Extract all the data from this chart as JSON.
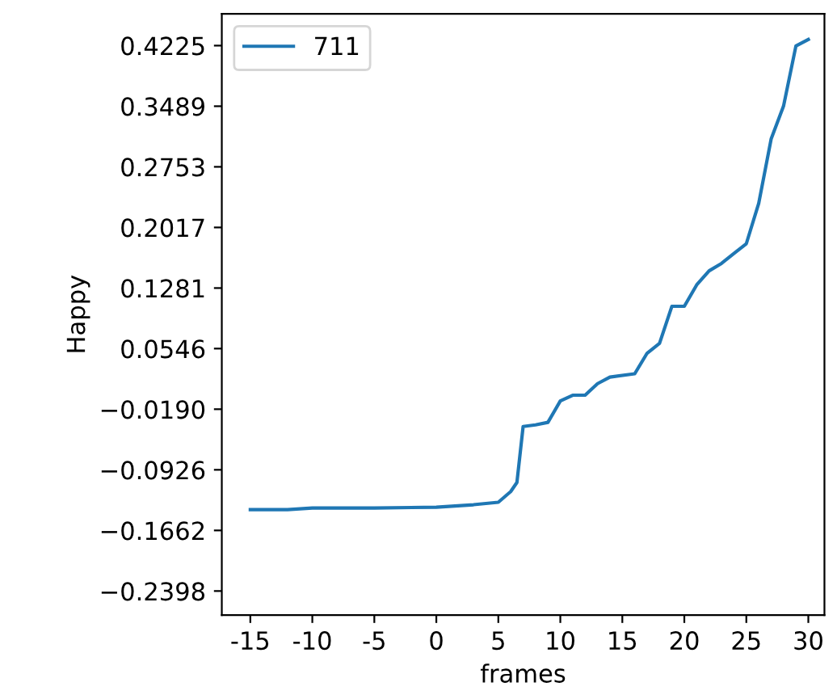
{
  "chart_data": {
    "type": "line",
    "xlabel": "frames",
    "ylabel": "Happy",
    "series": [
      {
        "name": "711",
        "color": "#1f77b4",
        "x": [
          -15,
          -12,
          -10,
          -5,
          0,
          3,
          5,
          6,
          6.5,
          7,
          8,
          9,
          10,
          11,
          12,
          13,
          14,
          16,
          17,
          18,
          19,
          20,
          21,
          22,
          23,
          24,
          25,
          26,
          27,
          28,
          29,
          30
        ],
        "values": [
          -0.141,
          -0.141,
          -0.139,
          -0.139,
          -0.138,
          -0.135,
          -0.132,
          -0.119,
          -0.108,
          -0.04,
          -0.038,
          -0.035,
          -0.009,
          -0.002,
          -0.002,
          0.012,
          0.02,
          0.024,
          0.049,
          0.061,
          0.106,
          0.106,
          0.132,
          0.149,
          0.158,
          0.17,
          0.182,
          0.231,
          0.309,
          0.349,
          0.422,
          0.43
        ]
      }
    ],
    "xlim": [
      -17.3,
      31.3
    ],
    "ylim": [
      -0.269,
      0.461
    ],
    "xticks": [
      -15,
      -10,
      -5,
      0,
      5,
      10,
      15,
      20,
      25,
      30
    ],
    "yticks": [
      {
        "value": -0.2398,
        "label": "−0.2398"
      },
      {
        "value": -0.1662,
        "label": "−0.1662"
      },
      {
        "value": -0.0926,
        "label": "−0.0926"
      },
      {
        "value": -0.019,
        "label": "−0.0190"
      },
      {
        "value": 0.0546,
        "label": "0.0546"
      },
      {
        "value": 0.1281,
        "label": "0.1281"
      },
      {
        "value": 0.2017,
        "label": "0.2017"
      },
      {
        "value": 0.2753,
        "label": "0.2753"
      },
      {
        "value": 0.3489,
        "label": "0.3489"
      },
      {
        "value": 0.4225,
        "label": "0.4225"
      }
    ],
    "legend": "top left",
    "grid": false,
    "marker": "none",
    "line_style": "solid"
  }
}
